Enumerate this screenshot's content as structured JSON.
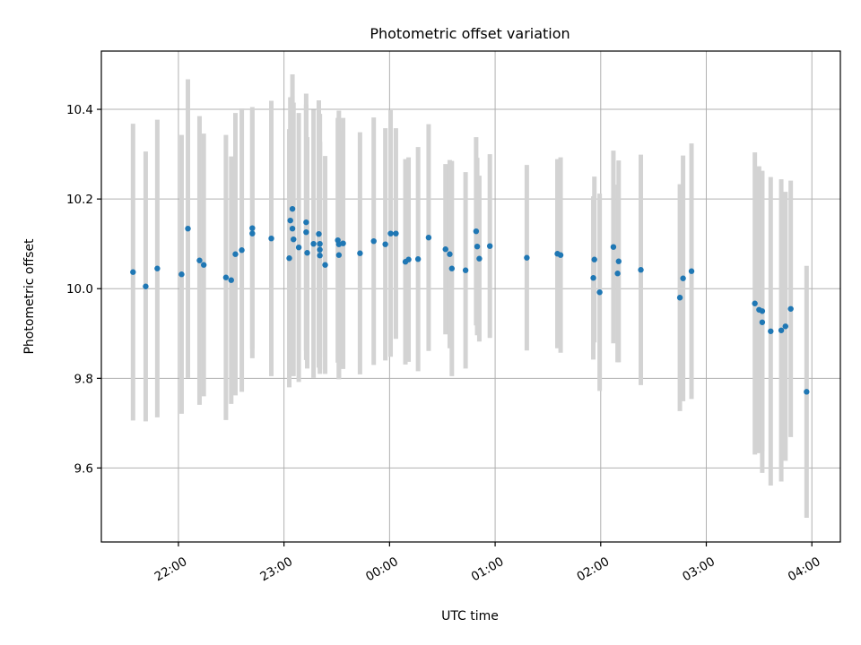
{
  "chart_data": {
    "type": "scatter",
    "title": "Photometric offset variation",
    "xlabel": "UTC time",
    "ylabel": "Photometric offset",
    "x_unit": "hours since 00:00 UTC (negative = previous day)",
    "xlim": [
      -2.73,
      4.27
    ],
    "ylim": [
      9.435,
      10.53
    ],
    "x_ticks": [
      {
        "value": -2,
        "label": "22:00"
      },
      {
        "value": -1,
        "label": "23:00"
      },
      {
        "value": 0,
        "label": "00:00"
      },
      {
        "value": 1,
        "label": "01:00"
      },
      {
        "value": 2,
        "label": "02:00"
      },
      {
        "value": 3,
        "label": "03:00"
      },
      {
        "value": 4,
        "label": "04:00"
      }
    ],
    "y_ticks": [
      {
        "value": 9.6,
        "label": "9.6"
      },
      {
        "value": 9.8,
        "label": "9.8"
      },
      {
        "value": 10.0,
        "label": "10.0"
      },
      {
        "value": 10.2,
        "label": "10.2"
      },
      {
        "value": 10.4,
        "label": "10.4"
      }
    ],
    "grid": true,
    "marker_color": "#1f77b4",
    "errorbar_color": "#d3d3d3",
    "points": [
      {
        "x": -2.43,
        "y": 10.037,
        "err": 0.331
      },
      {
        "x": -2.31,
        "y": 10.005,
        "err": 0.301
      },
      {
        "x": -2.2,
        "y": 10.045,
        "err": 0.332
      },
      {
        "x": -1.97,
        "y": 10.032,
        "err": 0.311
      },
      {
        "x": -1.91,
        "y": 10.134,
        "err": 0.333
      },
      {
        "x": -1.8,
        "y": 10.063,
        "err": 0.322
      },
      {
        "x": -1.76,
        "y": 10.053,
        "err": 0.293
      },
      {
        "x": -1.55,
        "y": 10.025,
        "err": 0.318
      },
      {
        "x": -1.5,
        "y": 10.019,
        "err": 0.276
      },
      {
        "x": -1.46,
        "y": 10.077,
        "err": 0.315
      },
      {
        "x": -1.4,
        "y": 10.086,
        "err": 0.316
      },
      {
        "x": -1.3,
        "y": 10.135,
        "err": 0.27
      },
      {
        "x": -1.3,
        "y": 10.123,
        "err": 0.278
      },
      {
        "x": -1.12,
        "y": 10.112,
        "err": 0.307
      },
      {
        "x": -0.95,
        "y": 10.068,
        "err": 0.288
      },
      {
        "x": -0.94,
        "y": 10.152,
        "err": 0.275
      },
      {
        "x": -0.92,
        "y": 10.178,
        "err": 0.3
      },
      {
        "x": -0.92,
        "y": 10.134,
        "err": 0.296
      },
      {
        "x": -0.91,
        "y": 10.11,
        "err": 0.305
      },
      {
        "x": -0.86,
        "y": 10.092,
        "err": 0.3
      },
      {
        "x": -0.79,
        "y": 10.148,
        "err": 0.287
      },
      {
        "x": -0.79,
        "y": 10.126,
        "err": 0.285
      },
      {
        "x": -0.78,
        "y": 10.08,
        "err": 0.258
      },
      {
        "x": -0.72,
        "y": 10.1,
        "err": 0.299
      },
      {
        "x": -0.67,
        "y": 10.122,
        "err": 0.298
      },
      {
        "x": -0.66,
        "y": 10.1,
        "err": 0.29
      },
      {
        "x": -0.66,
        "y": 10.087,
        "err": 0.24
      },
      {
        "x": -0.66,
        "y": 10.074,
        "err": 0.254
      },
      {
        "x": -0.61,
        "y": 10.053,
        "err": 0.243
      },
      {
        "x": -0.49,
        "y": 10.108,
        "err": 0.273
      },
      {
        "x": -0.48,
        "y": 10.099,
        "err": 0.298
      },
      {
        "x": -0.48,
        "y": 10.075,
        "err": 0.277
      },
      {
        "x": -0.44,
        "y": 10.101,
        "err": 0.28
      },
      {
        "x": -0.28,
        "y": 10.079,
        "err": 0.27
      },
      {
        "x": -0.15,
        "y": 10.106,
        "err": 0.276
      },
      {
        "x": -0.04,
        "y": 10.099,
        "err": 0.259
      },
      {
        "x": 0.01,
        "y": 10.123,
        "err": 0.275
      },
      {
        "x": 0.06,
        "y": 10.123,
        "err": 0.235
      },
      {
        "x": 0.15,
        "y": 10.06,
        "err": 0.229
      },
      {
        "x": 0.18,
        "y": 10.065,
        "err": 0.228
      },
      {
        "x": 0.27,
        "y": 10.066,
        "err": 0.25
      },
      {
        "x": 0.37,
        "y": 10.114,
        "err": 0.253
      },
      {
        "x": 0.53,
        "y": 10.088,
        "err": 0.19
      },
      {
        "x": 0.57,
        "y": 10.077,
        "err": 0.21
      },
      {
        "x": 0.59,
        "y": 10.045,
        "err": 0.24
      },
      {
        "x": 0.72,
        "y": 10.041,
        "err": 0.219
      },
      {
        "x": 0.82,
        "y": 10.128,
        "err": 0.21
      },
      {
        "x": 0.83,
        "y": 10.094,
        "err": 0.198
      },
      {
        "x": 0.85,
        "y": 10.067,
        "err": 0.185
      },
      {
        "x": 0.95,
        "y": 10.095,
        "err": 0.205
      },
      {
        "x": 1.3,
        "y": 10.069,
        "err": 0.207
      },
      {
        "x": 1.59,
        "y": 10.078,
        "err": 0.211
      },
      {
        "x": 1.62,
        "y": 10.075,
        "err": 0.218
      },
      {
        "x": 1.93,
        "y": 10.024,
        "err": 0.182
      },
      {
        "x": 1.94,
        "y": 10.065,
        "err": 0.185
      },
      {
        "x": 1.99,
        "y": 9.992,
        "err": 0.22
      },
      {
        "x": 2.12,
        "y": 10.093,
        "err": 0.215
      },
      {
        "x": 2.16,
        "y": 10.034,
        "err": 0.198
      },
      {
        "x": 2.17,
        "y": 10.061,
        "err": 0.225
      },
      {
        "x": 2.38,
        "y": 10.042,
        "err": 0.257
      },
      {
        "x": 2.75,
        "y": 9.98,
        "err": 0.253
      },
      {
        "x": 2.78,
        "y": 10.023,
        "err": 0.274
      },
      {
        "x": 2.86,
        "y": 10.039,
        "err": 0.285
      },
      {
        "x": 3.46,
        "y": 9.967,
        "err": 0.337
      },
      {
        "x": 3.5,
        "y": 9.953,
        "err": 0.32
      },
      {
        "x": 3.53,
        "y": 9.95,
        "err": 0.313
      },
      {
        "x": 3.53,
        "y": 9.925,
        "err": 0.336
      },
      {
        "x": 3.61,
        "y": 9.905,
        "err": 0.344
      },
      {
        "x": 3.71,
        "y": 9.907,
        "err": 0.337
      },
      {
        "x": 3.75,
        "y": 9.916,
        "err": 0.3
      },
      {
        "x": 3.8,
        "y": 9.955,
        "err": 0.286
      },
      {
        "x": 3.95,
        "y": 9.77,
        "err": 0.281
      }
    ]
  }
}
